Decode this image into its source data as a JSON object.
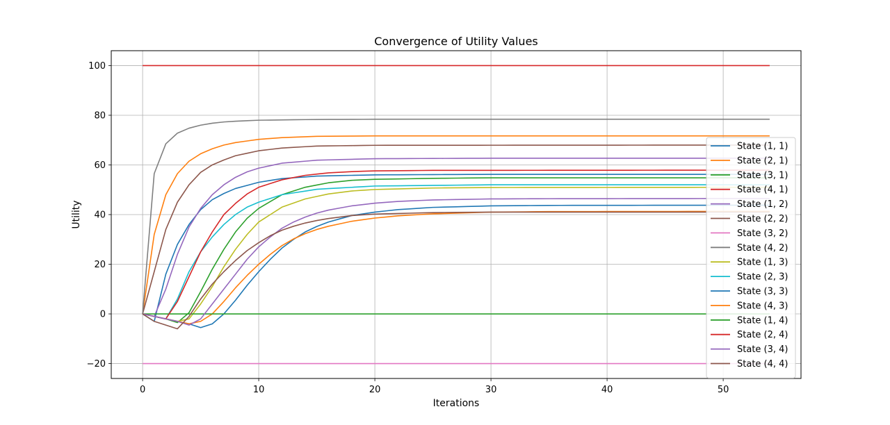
{
  "chart_data": {
    "type": "line",
    "title": "Convergence of Utility Values",
    "xlabel": "Iterations",
    "ylabel": "Utility",
    "xlim": [
      -2.7,
      56.7
    ],
    "ylim": [
      -26,
      106
    ],
    "xticks": [
      0,
      10,
      20,
      30,
      40,
      50
    ],
    "yticks": [
      -20,
      0,
      20,
      40,
      60,
      80,
      100
    ],
    "grid": true,
    "legend_position": "right",
    "iterations": 54,
    "series": [
      {
        "name": "State (1, 1)",
        "color": "#1f77b4",
        "points": [
          [
            0,
            0
          ],
          [
            1,
            -3
          ],
          [
            2,
            16
          ],
          [
            3,
            28
          ],
          [
            4,
            36
          ],
          [
            5,
            42
          ],
          [
            6,
            46
          ],
          [
            7,
            48.5
          ],
          [
            8,
            50.5
          ],
          [
            10,
            53
          ],
          [
            12,
            54.5
          ],
          [
            15,
            55.5
          ],
          [
            20,
            56
          ],
          [
            30,
            56.2
          ],
          [
            54,
            56.2
          ]
        ]
      },
      {
        "name": "State (2, 1)",
        "color": "#ff7f0e",
        "points": [
          [
            0,
            0
          ],
          [
            1,
            32
          ],
          [
            2,
            48
          ],
          [
            3,
            56.5
          ],
          [
            4,
            61.5
          ],
          [
            5,
            64.5
          ],
          [
            6,
            66.5
          ],
          [
            7,
            68
          ],
          [
            8,
            69
          ],
          [
            10,
            70.3
          ],
          [
            12,
            71
          ],
          [
            15,
            71.5
          ],
          [
            20,
            71.7
          ],
          [
            54,
            71.7
          ]
        ]
      },
      {
        "name": "State (3, 1)",
        "color": "#2ca02c",
        "points": [
          [
            0,
            0
          ],
          [
            1,
            -1
          ],
          [
            2,
            -2
          ],
          [
            3,
            -3.5
          ],
          [
            4,
            0.5
          ],
          [
            5,
            9
          ],
          [
            6,
            18
          ],
          [
            7,
            26
          ],
          [
            8,
            33
          ],
          [
            9,
            38.5
          ],
          [
            10,
            42.5
          ],
          [
            12,
            48
          ],
          [
            14,
            51
          ],
          [
            16,
            52.8
          ],
          [
            18,
            53.8
          ],
          [
            20,
            54.2
          ],
          [
            25,
            54.6
          ],
          [
            30,
            54.8
          ],
          [
            54,
            54.8
          ]
        ]
      },
      {
        "name": "State (4, 1)",
        "color": "#d62728",
        "points": [
          [
            0,
            100
          ],
          [
            54,
            100
          ]
        ]
      },
      {
        "name": "State (1, 2)",
        "color": "#9467bd",
        "points": [
          [
            0,
            0
          ],
          [
            1,
            -1
          ],
          [
            2,
            10
          ],
          [
            3,
            24
          ],
          [
            4,
            35
          ],
          [
            5,
            42.5
          ],
          [
            6,
            48
          ],
          [
            7,
            52
          ],
          [
            8,
            55
          ],
          [
            9,
            57.2
          ],
          [
            10,
            58.7
          ],
          [
            12,
            60.7
          ],
          [
            15,
            61.9
          ],
          [
            20,
            62.5
          ],
          [
            30,
            62.7
          ],
          [
            54,
            62.7
          ]
        ]
      },
      {
        "name": "State (2, 2)",
        "color": "#8c564b",
        "points": [
          [
            0,
            0
          ],
          [
            1,
            17
          ],
          [
            2,
            34
          ],
          [
            3,
            45
          ],
          [
            4,
            52
          ],
          [
            5,
            57
          ],
          [
            6,
            60
          ],
          [
            7,
            62
          ],
          [
            8,
            63.7
          ],
          [
            10,
            65.7
          ],
          [
            12,
            66.8
          ],
          [
            15,
            67.6
          ],
          [
            20,
            67.9
          ],
          [
            54,
            68
          ]
        ]
      },
      {
        "name": "State (3, 2)",
        "color": "#e377c2",
        "points": [
          [
            0,
            -20
          ],
          [
            54,
            -20
          ]
        ]
      },
      {
        "name": "State (4, 2)",
        "color": "#7f7f7f",
        "points": [
          [
            0,
            0
          ],
          [
            1,
            56.5
          ],
          [
            2,
            68.5
          ],
          [
            3,
            72.8
          ],
          [
            4,
            74.8
          ],
          [
            5,
            76
          ],
          [
            6,
            76.8
          ],
          [
            7,
            77.3
          ],
          [
            8,
            77.6
          ],
          [
            10,
            78
          ],
          [
            15,
            78.3
          ],
          [
            20,
            78.4
          ],
          [
            54,
            78.4
          ]
        ]
      },
      {
        "name": "State (1, 3)",
        "color": "#bcbd22",
        "points": [
          [
            0,
            0
          ],
          [
            1,
            -1
          ],
          [
            2,
            -2
          ],
          [
            3,
            -3
          ],
          [
            4,
            -2
          ],
          [
            5,
            4
          ],
          [
            6,
            11
          ],
          [
            7,
            19
          ],
          [
            8,
            26
          ],
          [
            9,
            32
          ],
          [
            10,
            37
          ],
          [
            12,
            43
          ],
          [
            14,
            46.3
          ],
          [
            16,
            48.3
          ],
          [
            18,
            49.5
          ],
          [
            20,
            50.1
          ],
          [
            25,
            50.7
          ],
          [
            30,
            50.9
          ],
          [
            54,
            51
          ]
        ]
      },
      {
        "name": "State (2, 3)",
        "color": "#17becf",
        "points": [
          [
            0,
            0
          ],
          [
            1,
            -1
          ],
          [
            2,
            -2
          ],
          [
            3,
            6
          ],
          [
            4,
            17
          ],
          [
            5,
            25
          ],
          [
            6,
            31
          ],
          [
            7,
            36
          ],
          [
            8,
            40
          ],
          [
            9,
            43
          ],
          [
            10,
            45
          ],
          [
            12,
            48
          ],
          [
            15,
            50.2
          ],
          [
            20,
            51.5
          ],
          [
            30,
            52
          ],
          [
            54,
            52
          ]
        ]
      },
      {
        "name": "State (3, 3)",
        "color": "#1f77b4",
        "points": [
          [
            0,
            0
          ],
          [
            1,
            -1
          ],
          [
            2,
            -2
          ],
          [
            3,
            -3
          ],
          [
            4,
            -4
          ],
          [
            5,
            -5.5
          ],
          [
            6,
            -4
          ],
          [
            7,
            0
          ],
          [
            8,
            5.5
          ],
          [
            9,
            11.5
          ],
          [
            10,
            17
          ],
          [
            11,
            22
          ],
          [
            12,
            26.5
          ],
          [
            13,
            30
          ],
          [
            14,
            33
          ],
          [
            15,
            35.2
          ],
          [
            16,
            37
          ],
          [
            18,
            39.6
          ],
          [
            20,
            41
          ],
          [
            22,
            42
          ],
          [
            25,
            42.9
          ],
          [
            30,
            43.5
          ],
          [
            35,
            43.7
          ],
          [
            54,
            43.8
          ]
        ]
      },
      {
        "name": "State (4, 3)",
        "color": "#ff7f0e",
        "points": [
          [
            0,
            0
          ],
          [
            1,
            -1
          ],
          [
            2,
            -2
          ],
          [
            3,
            -3
          ],
          [
            4,
            -4
          ],
          [
            5,
            -3
          ],
          [
            6,
            0
          ],
          [
            7,
            5
          ],
          [
            8,
            10.5
          ],
          [
            9,
            15.5
          ],
          [
            10,
            20
          ],
          [
            11,
            24
          ],
          [
            12,
            27.5
          ],
          [
            13,
            30.2
          ],
          [
            14,
            32.3
          ],
          [
            15,
            34
          ],
          [
            16,
            35.3
          ],
          [
            18,
            37.3
          ],
          [
            20,
            38.6
          ],
          [
            22,
            39.5
          ],
          [
            25,
            40.3
          ],
          [
            30,
            41
          ],
          [
            35,
            41.2
          ],
          [
            54,
            41.3
          ]
        ]
      },
      {
        "name": "State (1, 4)",
        "color": "#2ca02c",
        "points": [
          [
            0,
            0
          ],
          [
            54,
            0
          ]
        ]
      },
      {
        "name": "State (2, 4)",
        "color": "#d62728",
        "points": [
          [
            0,
            0
          ],
          [
            1,
            -1
          ],
          [
            2,
            -2
          ],
          [
            3,
            5
          ],
          [
            4,
            15
          ],
          [
            5,
            25
          ],
          [
            6,
            33
          ],
          [
            7,
            40
          ],
          [
            8,
            44.5
          ],
          [
            9,
            48.3
          ],
          [
            10,
            51
          ],
          [
            12,
            54
          ],
          [
            14,
            55.8
          ],
          [
            16,
            56.8
          ],
          [
            18,
            57.3
          ],
          [
            20,
            57.6
          ],
          [
            25,
            57.8
          ],
          [
            54,
            57.9
          ]
        ]
      },
      {
        "name": "State (3, 4)",
        "color": "#9467bd",
        "points": [
          [
            0,
            0
          ],
          [
            1,
            -1
          ],
          [
            2,
            -2
          ],
          [
            3,
            -3
          ],
          [
            4,
            -4.5
          ],
          [
            5,
            -2
          ],
          [
            6,
            4
          ],
          [
            7,
            10
          ],
          [
            8,
            16
          ],
          [
            9,
            22
          ],
          [
            10,
            27
          ],
          [
            11,
            31
          ],
          [
            12,
            34.5
          ],
          [
            13,
            37
          ],
          [
            14,
            39
          ],
          [
            15,
            40.6
          ],
          [
            16,
            41.8
          ],
          [
            18,
            43.5
          ],
          [
            20,
            44.6
          ],
          [
            22,
            45.3
          ],
          [
            25,
            45.9
          ],
          [
            30,
            46.3
          ],
          [
            35,
            46.4
          ],
          [
            54,
            46.5
          ]
        ]
      },
      {
        "name": "State (4, 4)",
        "color": "#8c564b",
        "points": [
          [
            0,
            0
          ],
          [
            1,
            -3
          ],
          [
            2,
            -4.5
          ],
          [
            3,
            -6
          ],
          [
            4,
            -1
          ],
          [
            5,
            6
          ],
          [
            6,
            12
          ],
          [
            7,
            17
          ],
          [
            8,
            21.5
          ],
          [
            9,
            25.5
          ],
          [
            10,
            28.7
          ],
          [
            11,
            31.5
          ],
          [
            12,
            33.7
          ],
          [
            13,
            35.3
          ],
          [
            14,
            36.6
          ],
          [
            15,
            37.6
          ],
          [
            16,
            38.4
          ],
          [
            18,
            39.6
          ],
          [
            20,
            40.2
          ],
          [
            25,
            40.8
          ],
          [
            30,
            41
          ],
          [
            54,
            41
          ]
        ]
      }
    ]
  }
}
